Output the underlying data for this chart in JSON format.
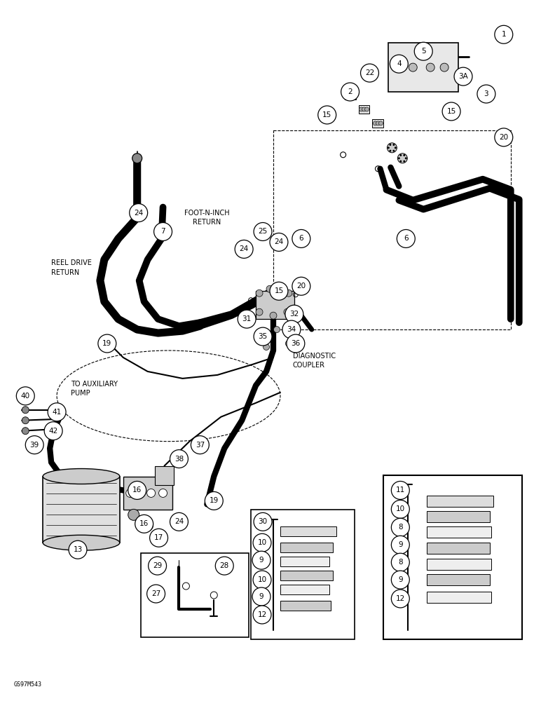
{
  "background_color": "#ffffff",
  "figure_width": 7.72,
  "figure_height": 10.0,
  "dpi": 100,
  "watermark": "GS97M543",
  "labels": {
    "reel_drive_return": "REEL DRIVE\nRETURN",
    "foot_n_inch": "FOOT-N-INCH\nRETURN",
    "to_aux_pump": "TO AUXILIARY\nPUMP",
    "diagnostic_coupler": "DIAGNOSTIC\nCOUPLER"
  }
}
